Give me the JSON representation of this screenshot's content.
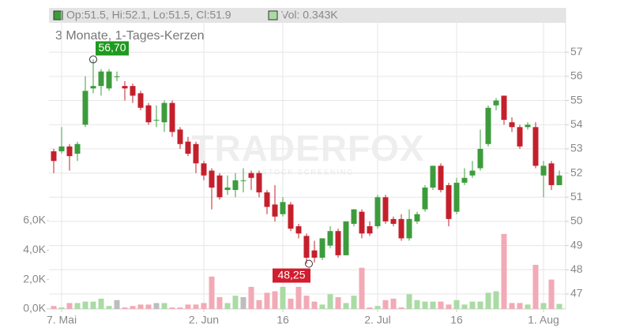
{
  "chart_data": {
    "type": "candlestick",
    "title": "3 Monate, 1-Tages-Kerzen",
    "header": {
      "ohlc_text": "Op:51.5, Hi:52.1, Lo:51.5, Cl:51.9",
      "volume_text": "Vol: 0.343K"
    },
    "watermark": {
      "brand": "TRADERFOX",
      "tagline": "STOCK SCREENING"
    },
    "categories": [
      null,
      "7. Mai",
      null,
      null,
      null,
      null,
      null,
      null,
      null,
      null,
      null,
      null,
      null,
      null,
      null,
      null,
      null,
      null,
      null,
      "2. Jun",
      null,
      null,
      null,
      null,
      null,
      null,
      null,
      null,
      null,
      "16",
      null,
      null,
      null,
      null,
      null,
      null,
      null,
      null,
      null,
      null,
      null,
      "2. Jul",
      null,
      null,
      null,
      null,
      null,
      null,
      null,
      null,
      null,
      "16",
      null,
      null,
      null,
      null,
      null,
      null,
      null,
      null,
      null,
      null,
      "1. Aug",
      null,
      null
    ],
    "open": [
      52.9,
      52.9,
      53.1,
      52.8,
      54.0,
      55.5,
      55.6,
      55.5,
      56.0,
      55.6,
      55.6,
      55.3,
      54.8,
      54.2,
      54.1,
      54.9,
      53.8,
      53.3,
      53.2,
      52.4,
      52.1,
      51.9,
      51.3,
      51.3,
      51.7,
      52.0,
      52.0,
      51.2,
      50.7,
      50.3,
      50.7,
      49.8,
      49.4,
      48.8,
      48.5,
      49.0,
      49.6,
      48.6,
      49.9,
      50.4,
      49.8,
      49.8,
      51.0,
      50.1,
      50.1,
      49.3,
      50.0,
      50.5,
      51.4,
      52.3,
      51.5,
      50.4,
      51.6,
      51.9,
      52.2,
      53.2,
      54.8,
      55.2,
      54.1,
      53.9,
      53.9,
      53.9,
      51.9,
      52.4,
      51.5
    ],
    "high": [
      53.0,
      53.9,
      53.2,
      53.3,
      56.0,
      56.7,
      56.3,
      56.3,
      56.2,
      55.8,
      55.7,
      55.4,
      54.9,
      54.8,
      55.0,
      55.0,
      53.9,
      53.5,
      53.3,
      52.5,
      52.2,
      52.0,
      51.9,
      52.0,
      52.2,
      52.1,
      52.1,
      51.3,
      51.5,
      51.0,
      50.8,
      49.9,
      49.5,
      49.2,
      49.3,
      49.8,
      49.7,
      50.0,
      50.5,
      50.5,
      50.0,
      51.1,
      51.1,
      50.2,
      50.3,
      50.5,
      50.4,
      51.5,
      52.3,
      52.4,
      51.6,
      51.8,
      52.2,
      52.5,
      53.8,
      54.8,
      55.1,
      55.2,
      54.3,
      54.0,
      54.1,
      54.1,
      52.5,
      52.5,
      52.1
    ],
    "low": [
      52.0,
      52.8,
      52.1,
      52.5,
      53.9,
      55.3,
      55.2,
      55.4,
      55.8,
      55.0,
      54.9,
      54.6,
      54.0,
      53.9,
      53.7,
      53.5,
      53.0,
      52.7,
      52.0,
      51.7,
      50.5,
      50.9,
      51.1,
      51.0,
      51.2,
      51.3,
      51.0,
      50.3,
      50.0,
      50.2,
      49.6,
      49.3,
      48.25,
      48.3,
      48.4,
      48.9,
      48.5,
      48.6,
      49.8,
      49.3,
      49.4,
      49.7,
      49.9,
      49.8,
      49.2,
      49.2,
      49.9,
      50.4,
      51.3,
      51.2,
      49.8,
      50.3,
      51.5,
      51.8,
      52.1,
      53.1,
      54.6,
      54.0,
      53.7,
      53.0,
      53.8,
      52.2,
      51.0,
      51.3,
      51.5
    ],
    "close": [
      52.5,
      53.1,
      52.7,
      53.2,
      55.4,
      55.6,
      56.2,
      56.2,
      56.0,
      55.5,
      55.2,
      54.7,
      54.1,
      54.2,
      54.9,
      53.7,
      53.2,
      52.8,
      52.4,
      51.9,
      51.4,
      51.0,
      51.4,
      51.7,
      51.7,
      51.8,
      51.2,
      50.6,
      50.2,
      50.8,
      49.7,
      49.5,
      48.5,
      48.5,
      49.3,
      49.6,
      48.6,
      50.0,
      50.5,
      49.5,
      49.5,
      51.0,
      50.0,
      49.9,
      49.3,
      50.1,
      50.3,
      51.4,
      52.3,
      51.3,
      50.1,
      51.6,
      51.8,
      52.1,
      53.0,
      54.7,
      55.0,
      54.2,
      53.9,
      53.1,
      54.0,
      52.3,
      52.3,
      51.5,
      51.9
    ],
    "volume": [
      0.2,
      0.1,
      0.4,
      0.4,
      0.5,
      0.5,
      0.7,
      0.2,
      0.6,
      0.1,
      0.2,
      0.3,
      0.3,
      0.4,
      0.4,
      0.1,
      0.1,
      0.3,
      0.3,
      0.4,
      2.2,
      0.8,
      0.4,
      0.9,
      0.8,
      1.5,
      0.6,
      1.1,
      1.2,
      1.5,
      0.7,
      1.5,
      0.9,
      0.5,
      0.3,
      1.0,
      0.8,
      0.4,
      0.9,
      2.8,
      0.1,
      0.2,
      0.6,
      0.7,
      0.1,
      1.0,
      0.6,
      0.5,
      0.5,
      0.5,
      0.3,
      0.6,
      0.3,
      0.5,
      0.5,
      1.1,
      1.2,
      5.1,
      0.4,
      0.4,
      0.3,
      3.0,
      0.4,
      2.0,
      0.343
    ],
    "high_label": {
      "value": 56.7,
      "label": "56,70"
    },
    "low_label": {
      "value": 48.25,
      "label": "48,25"
    },
    "ylim": [
      46.38,
      58.18
    ],
    "yticks": [
      47,
      48,
      49,
      50,
      51,
      52,
      53,
      54,
      55,
      56,
      57
    ],
    "vol_ylim": [
      0,
      19.4
    ],
    "vol_yticks": [
      {
        "value": 0,
        "label": "0,0K"
      },
      {
        "value": 2,
        "label": "2,0K"
      },
      {
        "value": 4,
        "label": "4,0K"
      },
      {
        "value": 6,
        "label": "6,0K"
      }
    ],
    "up_color": "#3c9c3c",
    "down_color": "#c4202c",
    "vol_up_color": "#aadba4",
    "vol_down_color": "#f2aab6",
    "vol_flat_color": "#bdbdbd",
    "grid": true
  }
}
